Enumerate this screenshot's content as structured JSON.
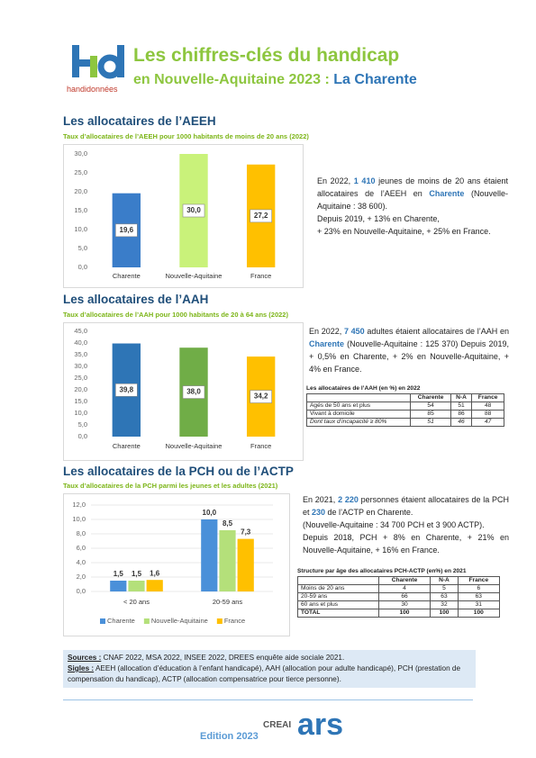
{
  "header": {
    "logo": "handidonnées",
    "title": "Les chiffres-clés du handicap",
    "subtitle": "en Nouvelle-Aquitaine 2023 : ",
    "territory": "La Charente"
  },
  "sections": [
    {
      "heading": "Les allocataires de l’AEEH",
      "paragraphs": [
        [
          "En 2022, ",
          "1 410",
          " jeunes de moins de 20 ans étaient allocataires de l’AEEH en ",
          "Charente",
          " (Nouvelle-Aquitaine : 38 600)."
        ],
        [
          "Depuis 2019, + 13% en Charente,"
        ],
        [
          "+ 23% en Nouvelle-Aquitaine, + 25% en France."
        ]
      ]
    },
    {
      "heading": "Les allocataires de l’AAH",
      "paragraphs": [
        [
          "En 2022, ",
          "7 450",
          " adultes étaient allocataires de l’AAH en ",
          "Charente",
          " (Nouvelle-Aquitaine : 125 370) Depuis 2019, + 0,5% en Charente, + 2% en Nouvelle-Aquitaine, + 4% en France."
        ]
      ]
    },
    {
      "heading": "Les allocataires de la PCH ou de l’ACTP",
      "paragraphs": [
        [
          "En 2021, ",
          "2 220",
          " personnes étaient allocataires de la PCH et ",
          "230",
          " de l’ACTP en Charente."
        ],
        [
          "(Nouvelle-Aquitaine : 34 700 PCH et 3 900 ACTP)."
        ],
        [
          "Depuis 2018, PCH + 8% en Charente, + 21% en Nouvelle-Aquitaine, + 16% en France."
        ]
      ]
    }
  ],
  "tables": [
    {
      "title": "Les allocataires de l’AAH (en %) en 2022",
      "header": [
        "Charente",
        "N-A",
        "France"
      ],
      "rows": [
        [
          "Agés de 50 ans et plus",
          54,
          51,
          48
        ],
        [
          "Vivant à domicile",
          85,
          86,
          88
        ],
        [
          "Dont taux d’incapacité ≥ 80%",
          51,
          46,
          47
        ]
      ]
    },
    {
      "title": "Structure par âge des allocataires PCH-ACTP (en%) en 2021",
      "header": [
        "Charente",
        "N-A",
        "France"
      ],
      "rows": [
        [
          "Moins de 20 ans",
          4,
          5,
          6
        ],
        [
          "20-59 ans",
          66,
          63,
          63
        ],
        [
          "60 ans et plus",
          30,
          32,
          31
        ],
        [
          "TOTAL",
          100,
          100,
          100
        ]
      ]
    }
  ],
  "chart_data": [
    {
      "type": "bar",
      "title": "Taux d’allocataires de l’AEEH pour 1000 habitants de moins de 20 ans (2022)",
      "categories": [
        "Charente",
        "Nouvelle-Aquitaine",
        "France"
      ],
      "values": [
        19.6,
        30.0,
        27.2
      ],
      "value_labels": [
        "19,6",
        "30,0",
        "27,2"
      ],
      "colors": [
        "#3a7dc9",
        "#c9f27a",
        "#ffc000"
      ],
      "ylim": [
        0,
        30
      ],
      "yticks": [
        {
          "value": 0,
          "label": "0,0"
        },
        {
          "value": 5,
          "label": "5,0"
        },
        {
          "value": 10,
          "label": "10,0"
        },
        {
          "value": 15,
          "label": "15,0"
        },
        {
          "value": 20,
          "label": "20,0"
        },
        {
          "value": 25,
          "label": "25,0"
        },
        {
          "value": 30,
          "label": "30,0"
        }
      ],
      "grid": false
    },
    {
      "type": "bar",
      "title": "Taux d’allocataires de l’AAH pour 1000 habitants de 20 à 64 ans (2022)",
      "categories": [
        "Charente",
        "Nouvelle-Aquitaine",
        "France"
      ],
      "values": [
        39.8,
        38.0,
        34.2
      ],
      "value_labels": [
        "39,8",
        "38,0",
        "34,2"
      ],
      "colors": [
        "#2e75b6",
        "#70ad47",
        "#ffc000"
      ],
      "ylim": [
        0,
        45
      ],
      "yticks": [
        {
          "value": 0,
          "label": "0,0"
        },
        {
          "value": 5,
          "label": "5,0"
        },
        {
          "value": 10,
          "label": "10,0"
        },
        {
          "value": 15,
          "label": "15,0"
        },
        {
          "value": 20,
          "label": "20,0"
        },
        {
          "value": 25,
          "label": "25,0"
        },
        {
          "value": 30,
          "label": "30,0"
        },
        {
          "value": 35,
          "label": "35,0"
        },
        {
          "value": 40,
          "label": "40,0"
        },
        {
          "value": 45,
          "label": "45,0"
        }
      ],
      "grid": false
    },
    {
      "type": "grouped-bar",
      "title": "Taux d’allocataires de la PCH parmi les jeunes et les adultes (2021)",
      "categories": [
        "< 20 ans",
        "20-59 ans"
      ],
      "series": [
        {
          "name": "Charente",
          "color": "#4a90d9",
          "values": [
            1.5,
            10.0
          ],
          "value_labels": [
            "1,5",
            "10,0"
          ]
        },
        {
          "name": "Nouvelle-Aquitaine",
          "color": "#b4e07a",
          "values": [
            1.5,
            8.5
          ],
          "value_labels": [
            "1,5",
            "8,5"
          ]
        },
        {
          "name": "France",
          "color": "#ffc000",
          "values": [
            1.6,
            7.3
          ],
          "value_labels": [
            "1,6",
            "7,3"
          ]
        }
      ],
      "ylim": [
        0,
        12
      ],
      "yticks": [
        {
          "value": 0,
          "label": "0,0"
        },
        {
          "value": 2,
          "label": "2,0"
        },
        {
          "value": 4,
          "label": "4,0"
        },
        {
          "value": 6,
          "label": "6,0"
        },
        {
          "value": 8,
          "label": "8,0"
        },
        {
          "value": 10,
          "label": "10,0"
        },
        {
          "value": 12,
          "label": "12,0"
        }
      ],
      "grid": true,
      "legend": "bottom"
    }
  ],
  "footer": {
    "sources_label": "Sources :",
    "sources": "CNAF 2022, MSA 2022, INSEE 2022, DREES enquête aide sociale 2021.",
    "sigles_label": "Sigles :",
    "sigles": "AEEH (allocation d’éducation à l’enfant handicapé), AAH (allocation pour adulte handicapé), PCH (prestation de compensation du handicap), ACTP (allocation compensatrice pour tierce personne).",
    "edition": "Edition 2023",
    "logos": [
      "CREAI",
      "ars"
    ]
  }
}
